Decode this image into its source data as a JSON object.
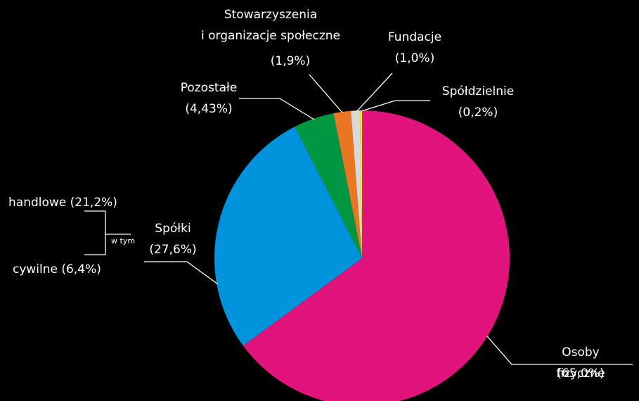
{
  "chart_data": {
    "type": "pie",
    "categories": [
      "Osoby fizyczne",
      "Spółki",
      "Pozostałe",
      "Stowarzyszenia\ni organizacje społeczne",
      "Fundacje",
      "Spółdzielnie"
    ],
    "values": [
      65.0,
      27.6,
      4.43,
      1.9,
      1.0,
      0.2
    ],
    "value_labels": [
      "(65,0%)",
      "(27,6%)",
      "(4,43%)",
      "(1,9%)",
      "(1,0%)",
      "(0,2%)"
    ],
    "colors": [
      "#e0147c",
      "#0093dd",
      "#009540",
      "#ea7622",
      "#d9d9d9",
      "#ffe600"
    ],
    "breakdown": {
      "label": "w tym",
      "categories": [
        "handlowe",
        "cywilne"
      ],
      "values": [
        21.2,
        6.4
      ],
      "value_labels": [
        "(21,2%)",
        "(6,4%)"
      ]
    }
  }
}
